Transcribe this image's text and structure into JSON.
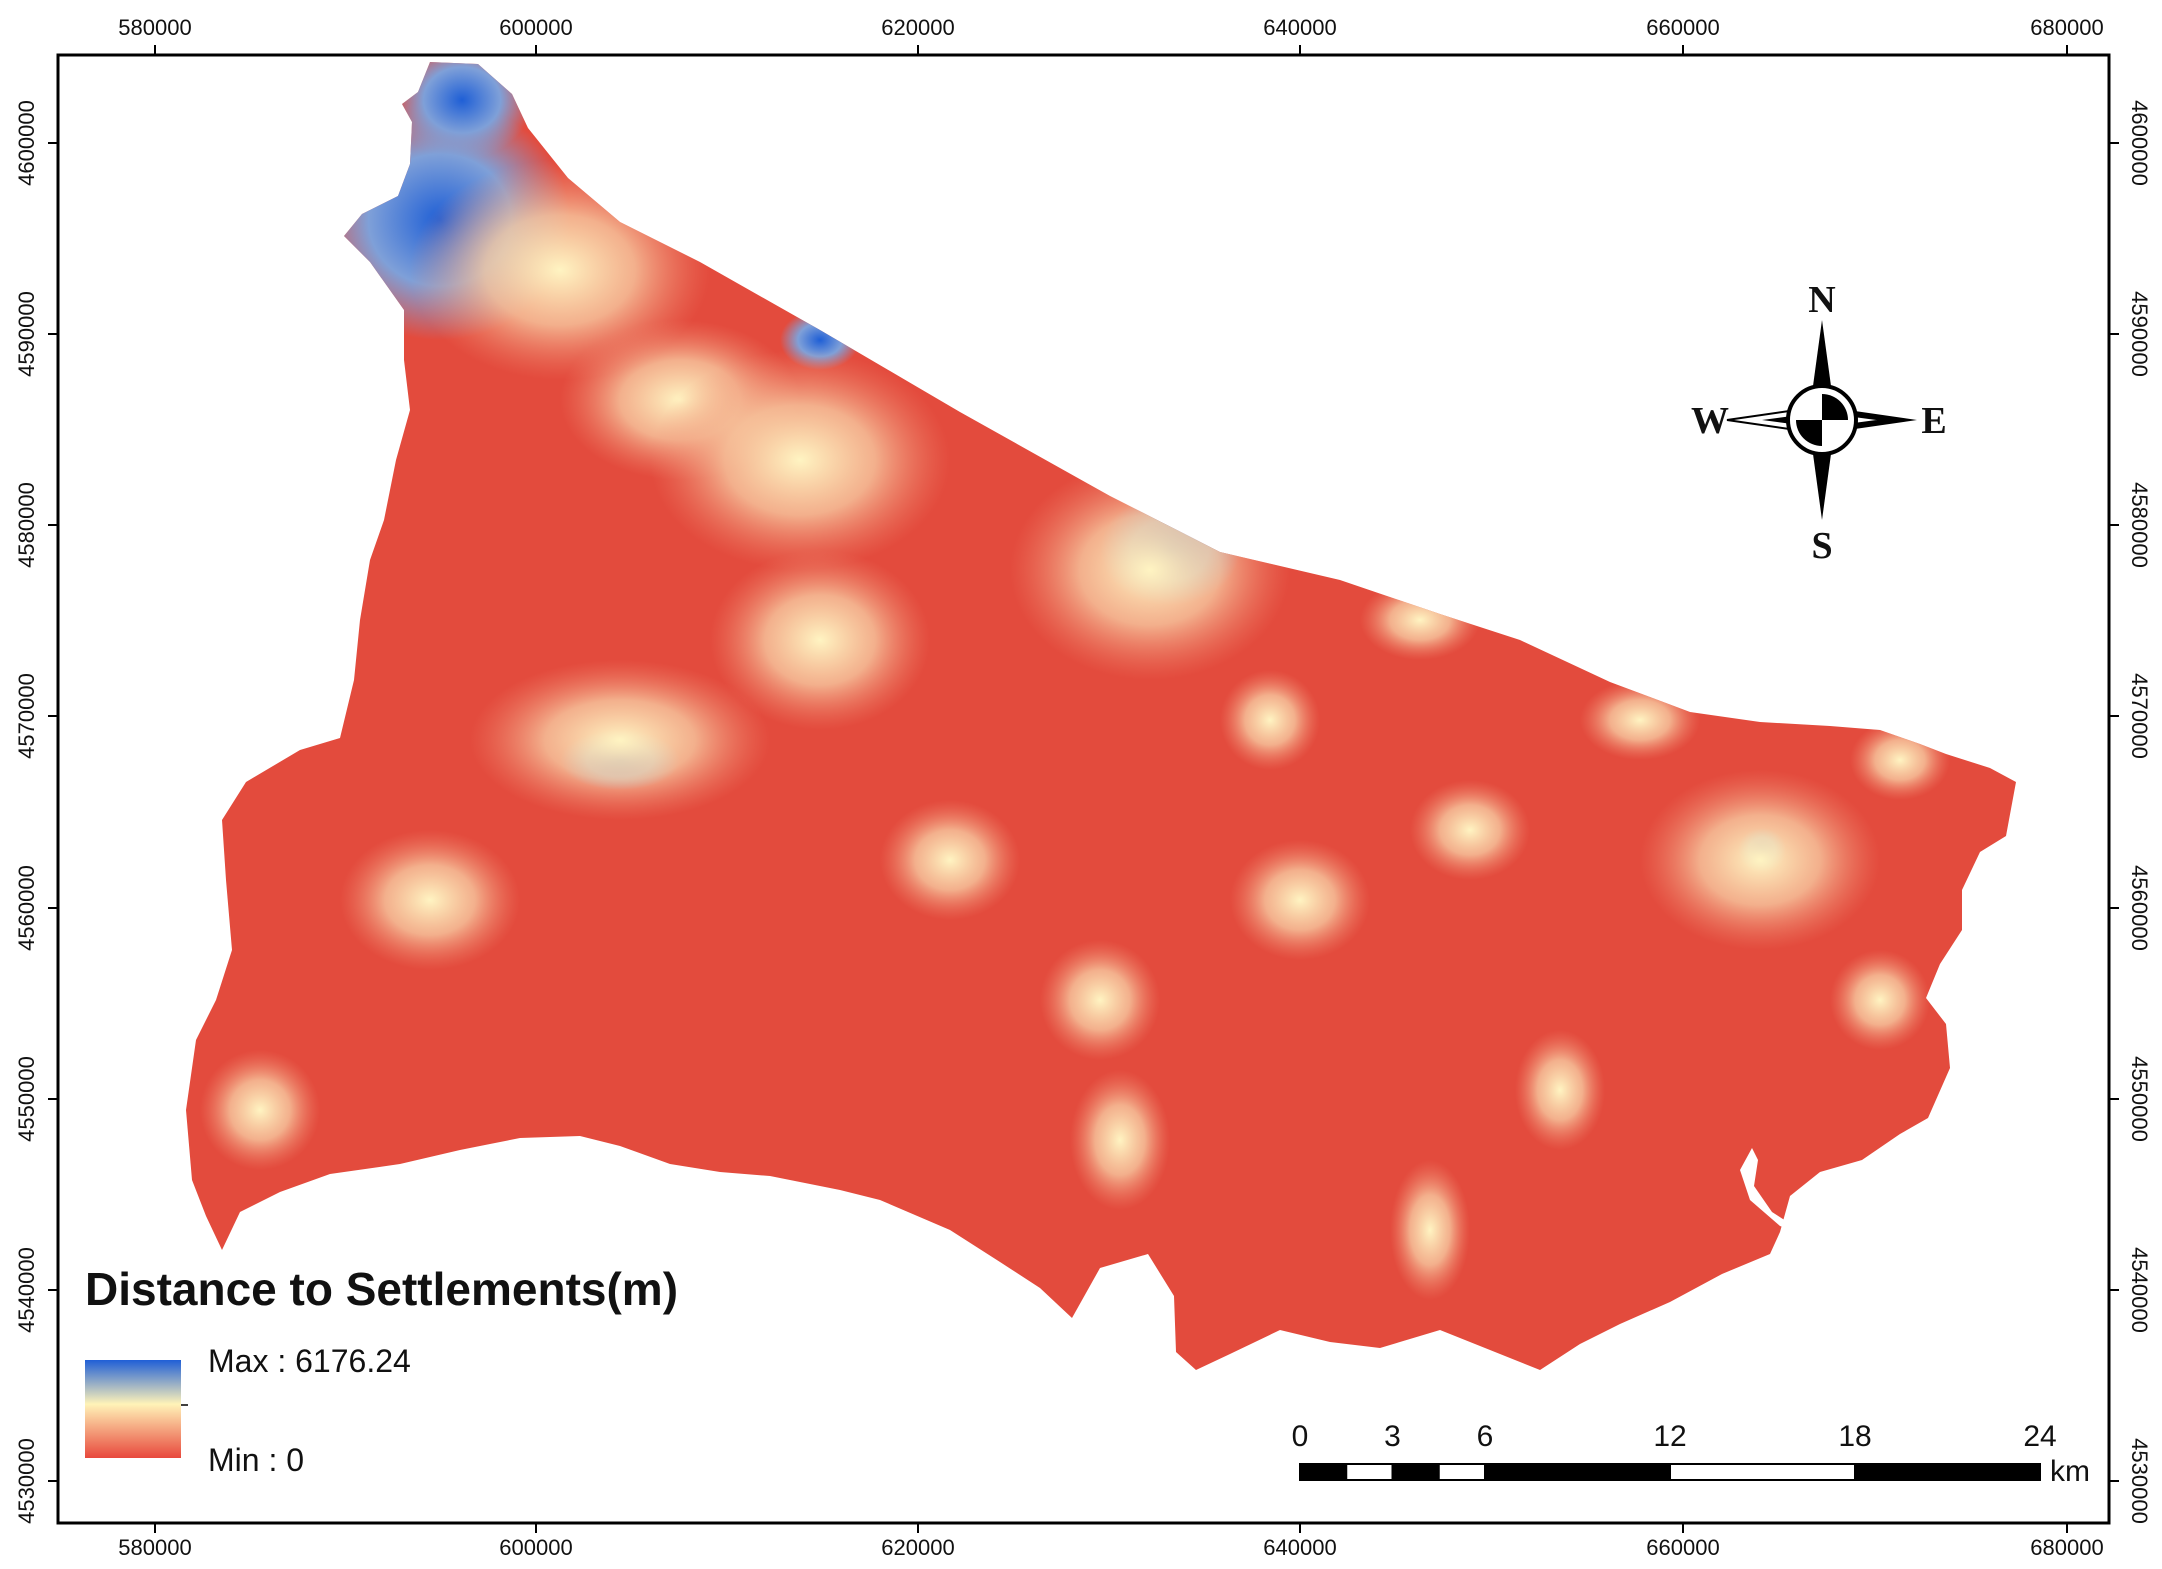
{
  "map": {
    "x_ticks": [
      "580000",
      "600000",
      "620000",
      "640000",
      "660000",
      "680000"
    ],
    "y_ticks": [
      "4600000",
      "4590000",
      "4580000",
      "4570000",
      "4560000",
      "4550000",
      "4540000",
      "4530000"
    ]
  },
  "legend": {
    "title": "Distance to Settlements(m)",
    "max_label": "Max : 6176.24",
    "min_label": "Min : 0",
    "colors": {
      "max": "#1f5fd6",
      "mid": "#fff3b8",
      "min": "#e8483c"
    }
  },
  "compass": {
    "north": "N",
    "south": "S",
    "east": "E",
    "west": "W"
  },
  "scale_bar": {
    "labels": [
      "0",
      "3",
      "6",
      "12",
      "18",
      "24"
    ],
    "unit": "km"
  },
  "colors": {
    "land": "#e34b3d",
    "frame": "#000000"
  }
}
